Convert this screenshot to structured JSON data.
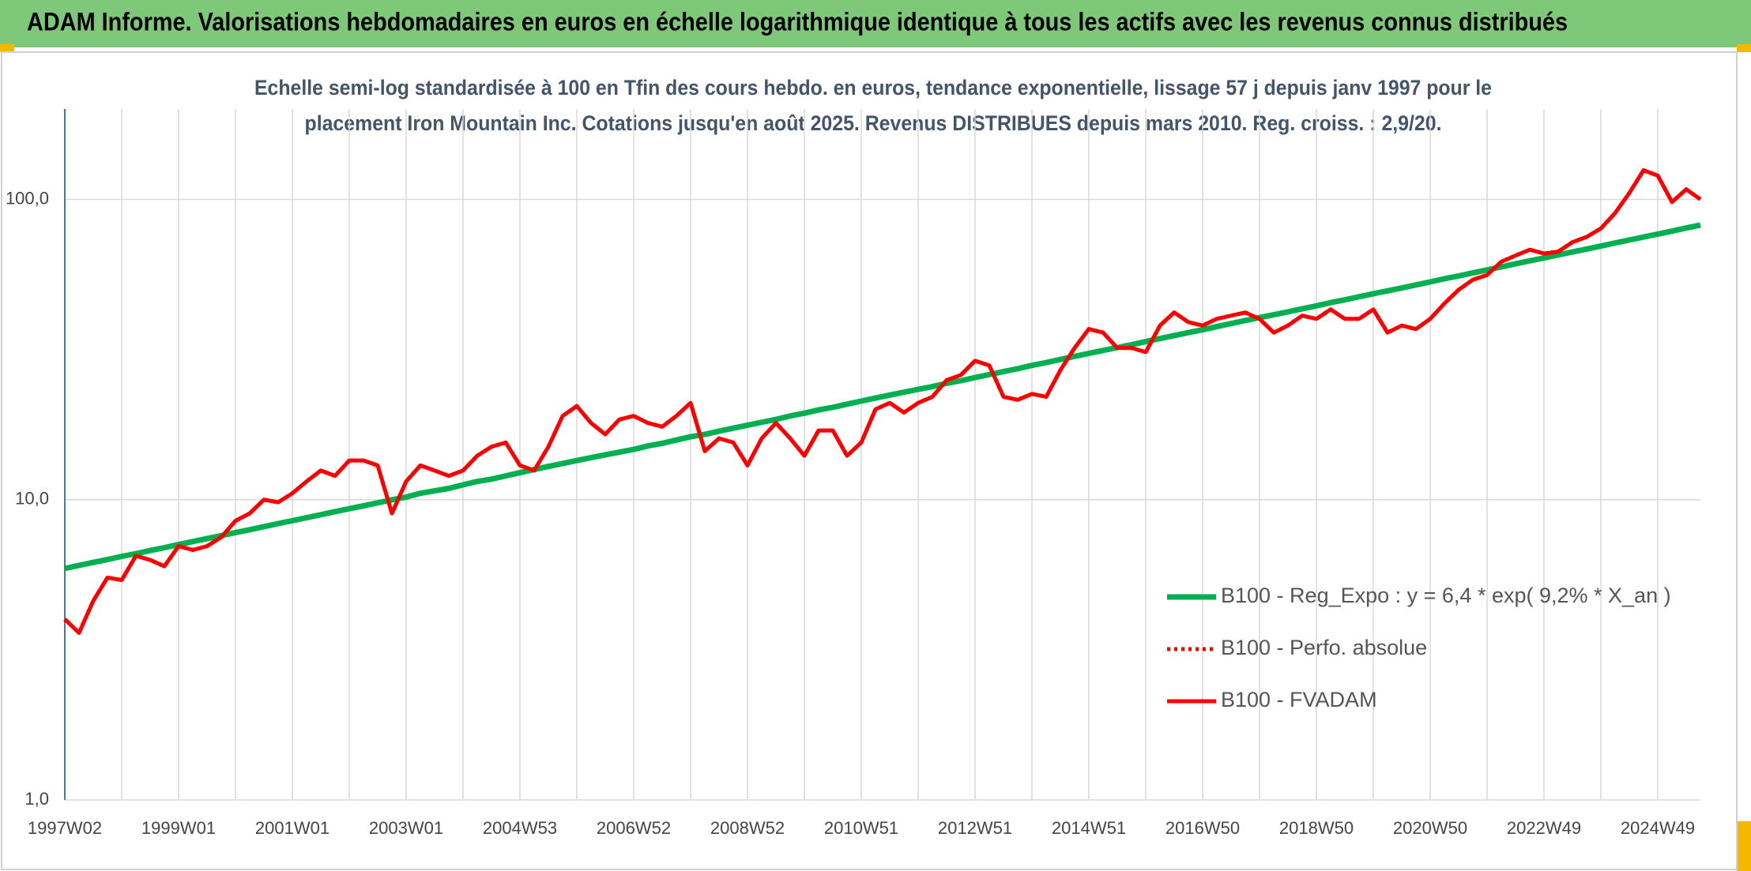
{
  "chart_data": {
    "type": "line",
    "title": "ADAM Informe. Valorisations hebdomadaires en euros en échelle logarithmique identique à tous les actifs avec les revenus connus distribués",
    "subtitle": [
      "Echelle semi-log standardisée à 100 en Tfin des cours hebdo. en euros, tendance exponentielle, lissage 57 j depuis janv 1997 pour le",
      "placement Iron Mountain Inc. Cotations jusqu'en août 2025. Revenus DISTRIBUES depuis mars 2010. Reg. croiss. : 2,9/20."
    ],
    "log_scale": true,
    "grid": true,
    "legend": "right",
    "ylim": [
      1,
      200
    ],
    "yticks": [
      {
        "value": 1,
        "label": "1,0"
      },
      {
        "value": 10,
        "label": "10,0"
      },
      {
        "value": 100,
        "label": "100,0"
      }
    ],
    "categories": [
      "1997W02",
      null,
      null,
      null,
      null,
      null,
      null,
      null,
      "1999W01",
      null,
      null,
      null,
      null,
      null,
      null,
      null,
      "2001W01",
      null,
      null,
      null,
      null,
      null,
      null,
      null,
      "2003W01",
      null,
      null,
      null,
      null,
      null,
      null,
      null,
      "2004W53",
      null,
      null,
      null,
      null,
      null,
      null,
      null,
      "2006W52",
      null,
      null,
      null,
      null,
      null,
      null,
      null,
      "2008W52",
      null,
      null,
      null,
      null,
      null,
      null,
      null,
      "2010W51",
      null,
      null,
      null,
      null,
      null,
      null,
      null,
      "2012W51",
      null,
      null,
      null,
      null,
      null,
      null,
      null,
      "2014W51",
      null,
      null,
      null,
      null,
      null,
      null,
      null,
      "2016W50",
      null,
      null,
      null,
      null,
      null,
      null,
      null,
      "2018W50",
      null,
      null,
      null,
      null,
      null,
      null,
      null,
      "2020W50",
      null,
      null,
      null,
      null,
      null,
      null,
      null,
      "2022W49",
      null,
      null,
      null,
      null,
      null,
      null,
      null,
      "2024W49",
      null,
      null,
      null
    ],
    "series": [
      {
        "name": "B100 - Reg_Expo : y = 6,4 * exp( 9,2% *  X_an )",
        "color": "#00b050",
        "line_style": "solid",
        "values": [
          5.9,
          6.04,
          6.18,
          6.32,
          6.47,
          6.61,
          6.77,
          6.92,
          7.09,
          7.25,
          7.42,
          7.59,
          7.77,
          7.94,
          8.13,
          8.32,
          8.51,
          8.71,
          8.91,
          9.12,
          9.33,
          9.54,
          9.76,
          9.99,
          10.2,
          10.5,
          10.7,
          10.9,
          11.2,
          11.5,
          11.7,
          12.0,
          12.3,
          12.6,
          12.9,
          13.2,
          13.5,
          13.8,
          14.1,
          14.4,
          14.7,
          15.1,
          15.4,
          15.8,
          16.2,
          16.5,
          16.9,
          17.3,
          17.7,
          18.1,
          18.5,
          19.0,
          19.4,
          19.9,
          20.3,
          20.8,
          21.3,
          21.8,
          22.3,
          22.8,
          23.3,
          23.8,
          24.4,
          24.9,
          25.5,
          26.1,
          26.7,
          27.3,
          28.0,
          28.6,
          29.3,
          30.0,
          30.7,
          31.4,
          32.1,
          32.8,
          33.6,
          34.4,
          35.2,
          36.0,
          36.8,
          37.7,
          38.6,
          39.5,
          40.4,
          41.3,
          42.2,
          43.2,
          44.2,
          45.3,
          46.3,
          47.4,
          48.5,
          49.6,
          50.7,
          51.9,
          53.1,
          54.4,
          55.6,
          56.9,
          58.2,
          59.6,
          61.0,
          62.4,
          63.8,
          65.3,
          66.8,
          68.3,
          69.9,
          71.6,
          73.2,
          74.9,
          76.6,
          78.4,
          80.3,
          82.1
        ]
      },
      {
        "name": "B100 - Perfo. absolue",
        "color": "#ff0000",
        "line_style": "dotted",
        "values": [
          4.0,
          3.6,
          4.6,
          5.5,
          5.4,
          6.5,
          6.3,
          6.0,
          7.0,
          6.8,
          7.0,
          7.5,
          8.5,
          9.0,
          10.0,
          9.8,
          10.5,
          11.5,
          12.5,
          12.0,
          13.5,
          13.5,
          13.0,
          9.0,
          11.5,
          13.0,
          12.5,
          12.0,
          12.5,
          14.0,
          15.0,
          15.5,
          13.0,
          12.5,
          15.0,
          19.0,
          20.5,
          18.0,
          16.5,
          18.5,
          19.0,
          18.0,
          17.5,
          19.0,
          21.0,
          14.5,
          16.0,
          15.5,
          13.0,
          16.0,
          18.0,
          16.0,
          14.0,
          17.0,
          17.0,
          14.0,
          15.5,
          20.0,
          21.0,
          19.5,
          21.0,
          22.0,
          25.0,
          26.0,
          29.0,
          28.0,
          22.0,
          21.5,
          22.5,
          22.0,
          27.0,
          32.0,
          37.0,
          36.0,
          32.0,
          32.0,
          31.0,
          38.0,
          42.0,
          39.0,
          38.0,
          40.0,
          41.0,
          42.0,
          40.0,
          36.0,
          38.0,
          41.0,
          40.0,
          43.0,
          40.0,
          40.0,
          43.0,
          36.0,
          38.0,
          37.0,
          40.0,
          45.0,
          50.0,
          54.0,
          56.0,
          62.0,
          65.0,
          68.0,
          66.0,
          67.0,
          72.0,
          75.0,
          80.0,
          90.0,
          105.0,
          125.0,
          120.0,
          98.0,
          108.0,
          100.0
        ]
      },
      {
        "name": "B100 - FVADAM",
        "color": "#ff0000",
        "line_style": "solid",
        "values": [
          4.0,
          3.6,
          4.6,
          5.5,
          5.4,
          6.5,
          6.3,
          6.0,
          7.0,
          6.8,
          7.0,
          7.5,
          8.5,
          9.0,
          10.0,
          9.8,
          10.5,
          11.5,
          12.5,
          12.0,
          13.5,
          13.5,
          13.0,
          9.0,
          11.5,
          13.0,
          12.5,
          12.0,
          12.5,
          14.0,
          15.0,
          15.5,
          13.0,
          12.5,
          15.0,
          19.0,
          20.5,
          18.0,
          16.5,
          18.5,
          19.0,
          18.0,
          17.5,
          19.0,
          21.0,
          14.5,
          16.0,
          15.5,
          13.0,
          16.0,
          18.0,
          16.0,
          14.0,
          17.0,
          17.0,
          14.0,
          15.5,
          20.0,
          21.0,
          19.5,
          21.0,
          22.0,
          25.0,
          26.0,
          29.0,
          28.0,
          22.0,
          21.5,
          22.5,
          22.0,
          27.0,
          32.0,
          37.0,
          36.0,
          32.0,
          32.0,
          31.0,
          38.0,
          42.0,
          39.0,
          38.0,
          40.0,
          41.0,
          42.0,
          40.0,
          36.0,
          38.0,
          41.0,
          40.0,
          43.0,
          40.0,
          40.0,
          43.0,
          36.0,
          38.0,
          37.0,
          40.0,
          45.0,
          50.0,
          54.0,
          56.0,
          62.0,
          65.0,
          68.0,
          66.0,
          67.0,
          72.0,
          75.0,
          80.0,
          90.0,
          105.0,
          125.0,
          120.0,
          98.0,
          108.0,
          100.0
        ]
      }
    ]
  }
}
